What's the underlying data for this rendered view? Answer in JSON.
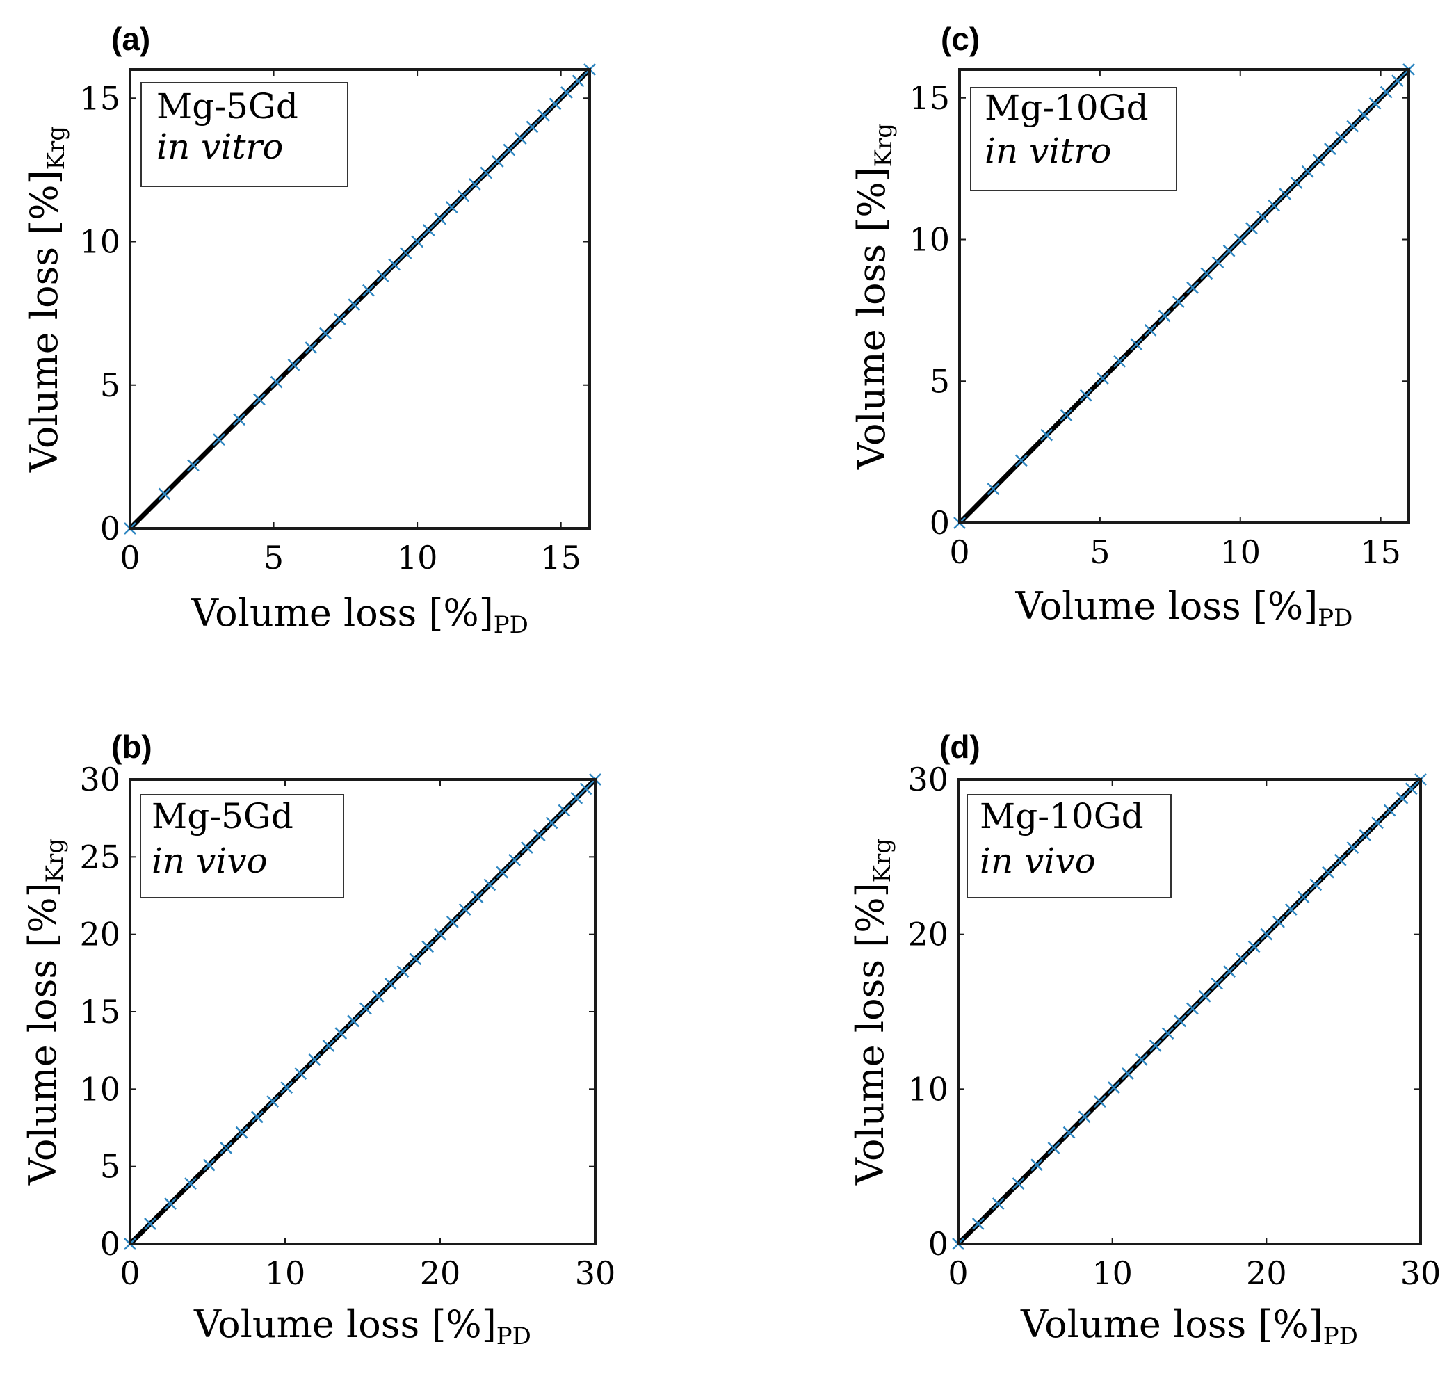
{
  "chart_data": [
    {
      "panel": "(a)",
      "type": "line",
      "legend_lines": [
        "Mg-5Gd",
        "in vitro"
      ],
      "legend_position": "top-left",
      "xlabel_main": "Volume loss [%]",
      "xlabel_sub": "PD",
      "ylabel_main": "Volume loss [%]",
      "ylabel_sub": "Krg",
      "xlim": [
        0,
        16
      ],
      "ylim": [
        0,
        16
      ],
      "xticks": [
        0,
        5,
        10,
        15
      ],
      "yticks": [
        0,
        5,
        10,
        15
      ],
      "series": [
        {
          "name": "identity line",
          "style": "solid black line",
          "x": [
            0,
            16
          ],
          "y": [
            0,
            16
          ]
        },
        {
          "name": "data points",
          "style": "blue cross markers",
          "x": [
            0,
            1.2,
            2.2,
            3.1,
            3.8,
            4.5,
            5.1,
            5.7,
            6.3,
            6.8,
            7.3,
            7.8,
            8.3,
            8.8,
            9.2,
            9.6,
            10.0,
            10.4,
            10.8,
            11.2,
            11.6,
            12.0,
            12.4,
            12.8,
            13.2,
            13.6,
            14.0,
            14.4,
            14.8,
            15.2,
            15.6,
            16.0
          ],
          "y": [
            0,
            1.2,
            2.2,
            3.1,
            3.8,
            4.5,
            5.1,
            5.7,
            6.3,
            6.8,
            7.3,
            7.8,
            8.3,
            8.8,
            9.2,
            9.6,
            10.0,
            10.4,
            10.8,
            11.2,
            11.6,
            12.0,
            12.4,
            12.8,
            13.2,
            13.6,
            14.0,
            14.4,
            14.8,
            15.2,
            15.6,
            16.0
          ]
        }
      ]
    },
    {
      "panel": "(c)",
      "type": "line",
      "legend_lines": [
        "Mg-10Gd",
        "in vitro"
      ],
      "legend_position": "top-left",
      "xlabel_main": "Volume loss [%]",
      "xlabel_sub": "PD",
      "ylabel_main": "Volume loss [%]",
      "ylabel_sub": "Krg",
      "xlim": [
        0,
        16
      ],
      "ylim": [
        0,
        16
      ],
      "xticks": [
        0,
        5,
        10,
        15
      ],
      "yticks": [
        0,
        5,
        10,
        15
      ],
      "series": [
        {
          "name": "identity line",
          "style": "solid black line",
          "x": [
            0,
            16
          ],
          "y": [
            0,
            16
          ]
        },
        {
          "name": "data points",
          "style": "blue cross markers",
          "x": [
            0,
            1.2,
            2.2,
            3.1,
            3.8,
            4.5,
            5.1,
            5.7,
            6.3,
            6.8,
            7.3,
            7.8,
            8.3,
            8.8,
            9.2,
            9.6,
            10.0,
            10.4,
            10.8,
            11.2,
            11.6,
            12.0,
            12.4,
            12.8,
            13.2,
            13.6,
            14.0,
            14.4,
            14.8,
            15.2,
            15.6,
            16.0
          ],
          "y": [
            0,
            1.2,
            2.2,
            3.1,
            3.8,
            4.5,
            5.1,
            5.7,
            6.3,
            6.8,
            7.3,
            7.8,
            8.3,
            8.8,
            9.2,
            9.6,
            10.0,
            10.4,
            10.8,
            11.2,
            11.6,
            12.0,
            12.4,
            12.8,
            13.2,
            13.6,
            14.0,
            14.4,
            14.8,
            15.2,
            15.6,
            16.0
          ]
        }
      ]
    },
    {
      "panel": "(b)",
      "type": "line",
      "legend_lines": [
        "Mg-5Gd",
        "in vivo"
      ],
      "legend_position": "top-left",
      "xlabel_main": "Volume loss [%]",
      "xlabel_sub": "PD",
      "ylabel_main": "Volume loss [%]",
      "ylabel_sub": "Krg",
      "xlim": [
        0,
        30
      ],
      "ylim": [
        0,
        30
      ],
      "xticks": [
        0,
        10,
        20,
        30
      ],
      "yticks": [
        0,
        5,
        10,
        15,
        20,
        25,
        30
      ],
      "series": [
        {
          "name": "identity line",
          "style": "solid black line",
          "x": [
            0,
            30
          ],
          "y": [
            0,
            30
          ]
        },
        {
          "name": "data points",
          "style": "blue cross markers",
          "x": [
            0,
            1.3,
            2.6,
            3.9,
            5.1,
            6.2,
            7.2,
            8.2,
            9.2,
            10.1,
            11.0,
            11.9,
            12.8,
            13.6,
            14.4,
            15.2,
            16.0,
            16.8,
            17.6,
            18.4,
            19.2,
            20.0,
            20.8,
            21.6,
            22.4,
            23.2,
            24.0,
            24.8,
            25.6,
            26.4,
            27.2,
            28.0,
            28.8,
            29.4,
            30.0
          ],
          "y": [
            0,
            1.3,
            2.6,
            3.9,
            5.1,
            6.2,
            7.2,
            8.2,
            9.2,
            10.1,
            11.0,
            11.9,
            12.8,
            13.6,
            14.4,
            15.2,
            16.0,
            16.8,
            17.6,
            18.4,
            19.2,
            20.0,
            20.8,
            21.6,
            22.4,
            23.2,
            24.0,
            24.8,
            25.6,
            26.4,
            27.2,
            28.0,
            28.8,
            29.4,
            30.0
          ]
        }
      ]
    },
    {
      "panel": "(d)",
      "type": "line",
      "legend_lines": [
        "Mg-10Gd",
        "in vivo"
      ],
      "legend_position": "top-left",
      "xlabel_main": "Volume loss [%]",
      "xlabel_sub": "PD",
      "ylabel_main": "Volume loss [%]",
      "ylabel_sub": "Krg",
      "xlim": [
        0,
        30
      ],
      "ylim": [
        0,
        30
      ],
      "xticks": [
        0,
        10,
        20,
        30
      ],
      "yticks": [
        0,
        10,
        20,
        30
      ],
      "series": [
        {
          "name": "identity line",
          "style": "solid black line",
          "x": [
            0,
            30
          ],
          "y": [
            0,
            30
          ]
        },
        {
          "name": "data points",
          "style": "blue cross markers",
          "x": [
            0,
            1.3,
            2.6,
            3.9,
            5.1,
            6.2,
            7.2,
            8.2,
            9.2,
            10.1,
            11.0,
            11.9,
            12.8,
            13.6,
            14.4,
            15.2,
            16.0,
            16.8,
            17.6,
            18.4,
            19.2,
            20.0,
            20.8,
            21.6,
            22.4,
            23.2,
            24.0,
            24.8,
            25.6,
            26.4,
            27.2,
            28.0,
            28.8,
            29.4,
            30.0
          ],
          "y": [
            0,
            1.3,
            2.6,
            3.9,
            5.1,
            6.2,
            7.2,
            8.2,
            9.2,
            10.1,
            11.0,
            11.9,
            12.8,
            13.6,
            14.4,
            15.2,
            16.0,
            16.8,
            17.6,
            18.4,
            19.2,
            20.0,
            20.8,
            21.6,
            22.4,
            23.2,
            24.0,
            24.8,
            25.6,
            26.4,
            27.2,
            28.0,
            28.8,
            29.4,
            30.0
          ]
        }
      ]
    }
  ],
  "colors": {
    "line": "#000000",
    "marker": "#2e86c1",
    "axis": "#1a1a1a",
    "background": "#ffffff"
  }
}
